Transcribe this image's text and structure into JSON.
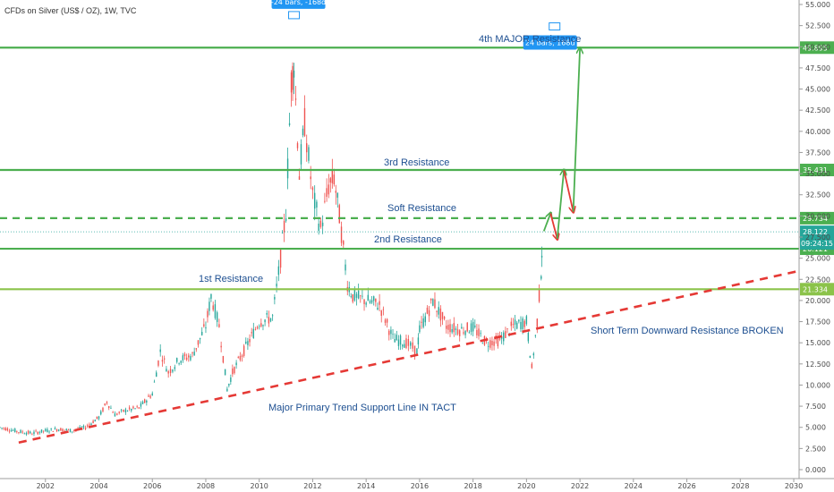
{
  "header": {
    "symbol": "CFDs on Silver (US$ / OZ), 1W, TVC"
  },
  "chart_data": {
    "type": "candlestick",
    "x_ticks": [
      "2002",
      "2004",
      "2006",
      "2008",
      "2010",
      "2012",
      "2014",
      "2016",
      "2018",
      "2020",
      "2022",
      "2024",
      "2026",
      "2028",
      "2030"
    ],
    "y_ticks": [
      "0.000",
      "2.500",
      "5.000",
      "7.500",
      "10.000",
      "12.500",
      "15.000",
      "17.500",
      "20.000",
      "22.500",
      "25.000",
      "27.500",
      "30.000",
      "32.500",
      "35.000",
      "37.500",
      "40.000",
      "42.500",
      "45.000",
      "47.500",
      "50.000",
      "52.500",
      "55.000"
    ],
    "xlim": [
      2000.3,
      2030.2
    ],
    "ylim": [
      0,
      55
    ],
    "series": {
      "x": [
        2000.3,
        2001.0,
        2001.5,
        2002.0,
        2002.5,
        2003.0,
        2003.5,
        2004.0,
        2004.3,
        2004.6,
        2005.0,
        2005.5,
        2006.0,
        2006.3,
        2006.6,
        2007.0,
        2007.5,
        2008.0,
        2008.2,
        2008.5,
        2008.8,
        2009.0,
        2009.5,
        2010.0,
        2010.5,
        2010.8,
        2011.0,
        2011.2,
        2011.3,
        2011.5,
        2011.7,
        2012.0,
        2012.3,
        2012.6,
        2012.8,
        2013.0,
        2013.3,
        2013.5,
        2014.0,
        2014.5,
        2015.0,
        2015.5,
        2015.9,
        2016.0,
        2016.5,
        2017.0,
        2017.5,
        2018.0,
        2018.5,
        2019.0,
        2019.5,
        2020.0,
        2020.2,
        2020.4,
        2020.55,
        2020.6
      ],
      "y": [
        5.0,
        4.5,
        4.3,
        4.6,
        4.8,
        4.6,
        5.0,
        6.2,
        8.0,
        6.5,
        7.0,
        7.3,
        9.0,
        14.0,
        11.5,
        13.0,
        13.5,
        17.0,
        20.5,
        17.0,
        9.5,
        11.5,
        14.5,
        17.5,
        18.0,
        25.0,
        30.5,
        46.0,
        48.0,
        35.0,
        41.0,
        32.5,
        28.5,
        33.5,
        34.5,
        30.0,
        22.0,
        20.5,
        20.0,
        19.5,
        15.5,
        15.0,
        14.0,
        16.5,
        20.0,
        17.0,
        16.5,
        16.8,
        15.0,
        15.3,
        17.0,
        17.5,
        12.0,
        17.5,
        23.5,
        28.1
      ]
    },
    "levels": [
      {
        "label": "4th MAJOR Resistance",
        "value_label": "49.895",
        "value": 49.895,
        "style": "solid",
        "color": "#4caf50"
      },
      {
        "label": "3rd Resistance",
        "value_label": "35.431",
        "value": 35.431,
        "style": "solid",
        "color": "#4caf50"
      },
      {
        "label": "Soft Resistance",
        "value_label": "29.734",
        "value": 29.734,
        "style": "dashed",
        "color": "#4caf50"
      },
      {
        "label": "2nd Resistance",
        "value_label": "26.121",
        "value": 26.121,
        "style": "solid",
        "color": "#4caf50"
      },
      {
        "label": "1st Resistance",
        "value_label": "21.334",
        "value": 21.334,
        "style": "solid",
        "color": "#8bc34a"
      }
    ],
    "current_price": {
      "value": 28.122,
      "value_label": "28.122",
      "countdown": "09:24:15",
      "color": "#26a69a"
    },
    "trendline": {
      "label": "Major Primary Trend Support Line IN TACT",
      "from": [
        2001.0,
        3.2
      ],
      "to": [
        2030.2,
        23.5
      ],
      "color": "#e53935"
    },
    "annotations": [
      {
        "text": "Short Term Downward Resistance BROKEN"
      }
    ],
    "bars_callouts": [
      {
        "text": "-24 bars, -168d",
        "date": 2011.3,
        "price": 53.0
      },
      {
        "text": "24 bars, 168d",
        "date": 2021.05,
        "price": 50.5
      }
    ],
    "projection": {
      "path": [
        [
          2020.65,
          28.2
        ],
        [
          2020.9,
          30.3
        ],
        [
          2021.15,
          27.3
        ],
        [
          2021.4,
          35.4
        ],
        [
          2021.75,
          30.5
        ],
        [
          2022.0,
          49.8
        ]
      ],
      "up_color": "#4caf50",
      "down_color": "#e53935"
    }
  }
}
